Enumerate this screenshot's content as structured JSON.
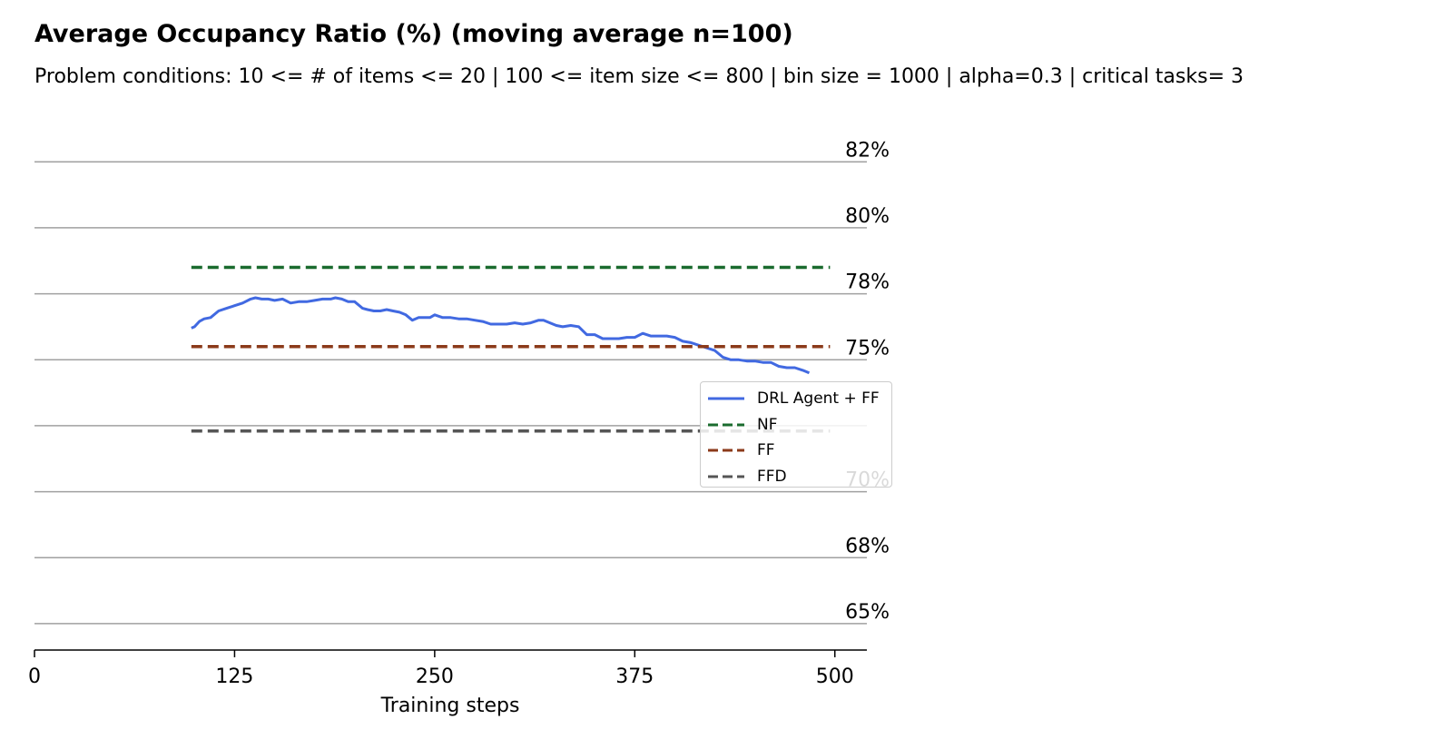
{
  "chart_data": {
    "type": "line",
    "title": "Average Occupancy Ratio (%) (moving average n=100)",
    "subtitle": "Problem conditions: 10 <= # of items <= 20 | 100 <= item size <= 800 | bin size = 1000 | alpha=0.3 | critical tasks= 3",
    "xlabel": "Training steps",
    "ylabel": "",
    "xlim": [
      0,
      520
    ],
    "ylim": [
      64,
      83.3
    ],
    "x_ticks": [
      0,
      125,
      250,
      375,
      500
    ],
    "x_tick_labels": [
      "0",
      "125",
      "250",
      "375",
      "500"
    ],
    "y_ticks": [
      65,
      67.5,
      70,
      72.5,
      75,
      77.5,
      80,
      82.5
    ],
    "y_tick_labels": [
      "65%",
      "68%",
      "70%",
      "",
      "75%",
      "78%",
      "80%",
      "82%"
    ],
    "grid": "horizontal",
    "legend_position": "right",
    "series": [
      {
        "name": "DRL Agent + FF",
        "color": "#4169e1",
        "style": "solid",
        "x": [
          98,
          100,
          103,
          106,
          110,
          115,
          120,
          125,
          130,
          135,
          138,
          142,
          146,
          150,
          155,
          160,
          165,
          170,
          175,
          180,
          185,
          188,
          192,
          196,
          200,
          205,
          208,
          212,
          216,
          220,
          224,
          228,
          232,
          236,
          240,
          242,
          244,
          247,
          250,
          255,
          260,
          265,
          270,
          275,
          280,
          285,
          290,
          295,
          300,
          305,
          310,
          315,
          318,
          322,
          326,
          330,
          335,
          340,
          345,
          350,
          355,
          360,
          365,
          370,
          375,
          380,
          385,
          390,
          395,
          400,
          405,
          410,
          415,
          420,
          425,
          430,
          435,
          440,
          445,
          450,
          455,
          460,
          465,
          470,
          475,
          480,
          484
        ],
        "y": [
          76.2,
          76.25,
          76.45,
          76.55,
          76.6,
          76.85,
          76.95,
          77.05,
          77.15,
          77.3,
          77.35,
          77.3,
          77.3,
          77.25,
          77.3,
          77.15,
          77.2,
          77.2,
          77.25,
          77.3,
          77.3,
          77.35,
          77.3,
          77.2,
          77.2,
          76.95,
          76.9,
          76.85,
          76.85,
          76.9,
          76.85,
          76.8,
          76.7,
          76.5,
          76.6,
          76.6,
          76.6,
          76.6,
          76.7,
          76.6,
          76.6,
          76.55,
          76.55,
          76.5,
          76.45,
          76.35,
          76.35,
          76.35,
          76.4,
          76.35,
          76.4,
          76.5,
          76.5,
          76.4,
          76.3,
          76.25,
          76.3,
          76.25,
          75.95,
          75.95,
          75.8,
          75.8,
          75.8,
          75.85,
          75.85,
          76.0,
          75.9,
          75.9,
          75.9,
          75.85,
          75.7,
          75.65,
          75.55,
          75.45,
          75.35,
          75.1,
          75.0,
          75.0,
          74.95,
          74.95,
          74.9,
          74.9,
          74.75,
          74.7,
          74.7,
          74.6,
          74.5
        ]
      },
      {
        "name": "NF",
        "color": "#1a6b2e",
        "style": "dashed",
        "x": [
          98,
          497
        ],
        "y": [
          78.5,
          78.5
        ]
      },
      {
        "name": "FF",
        "color": "#8b3a1a",
        "style": "dashed",
        "x": [
          98,
          497
        ],
        "y": [
          75.5,
          75.5
        ]
      },
      {
        "name": "FFD",
        "color": "#555555",
        "style": "dashed",
        "x": [
          98,
          497
        ],
        "y": [
          72.3,
          72.3
        ]
      }
    ]
  }
}
